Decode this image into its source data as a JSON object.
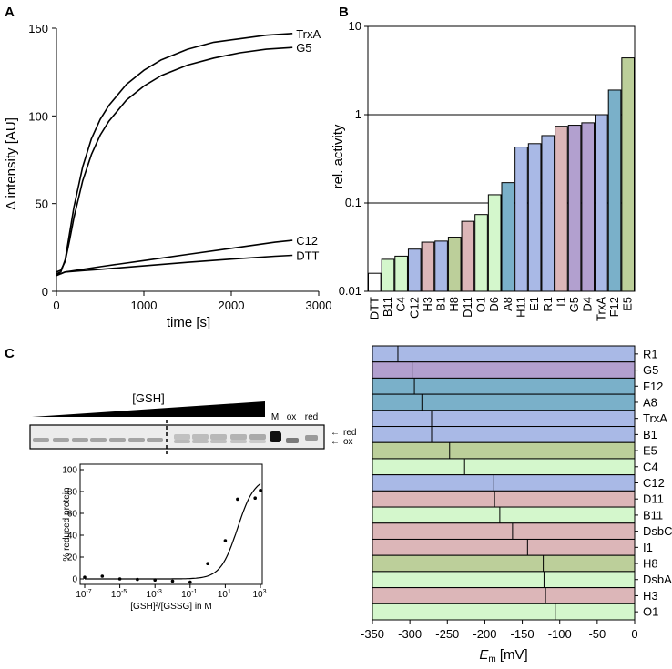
{
  "panels": {
    "a": "A",
    "b": "B",
    "c": "C"
  },
  "chart_data": [
    {
      "id": "A",
      "type": "line",
      "xlabel": "time [s]",
      "ylabel": "Δ intensity [AU]",
      "xlim": [
        0,
        3000
      ],
      "ylim": [
        0,
        150
      ],
      "xticks": [
        0,
        1000,
        2000,
        3000
      ],
      "yticks": [
        0,
        50,
        100,
        150
      ],
      "grid": false,
      "series": [
        {
          "name": "TrxA",
          "x": [
            0,
            50,
            100,
            150,
            200,
            300,
            400,
            500,
            600,
            800,
            1000,
            1200,
            1500,
            1800,
            2100,
            2400,
            2700
          ],
          "values": [
            10,
            11,
            18,
            33,
            48,
            71,
            87,
            98,
            106,
            118,
            126,
            132,
            138,
            142,
            144,
            146,
            147
          ]
        },
        {
          "name": "G5",
          "x": [
            0,
            50,
            100,
            150,
            200,
            300,
            400,
            500,
            600,
            800,
            1000,
            1200,
            1500,
            1800,
            2100,
            2400,
            2700
          ],
          "values": [
            11,
            12,
            17,
            29,
            42,
            63,
            78,
            89,
            97,
            109,
            117,
            123,
            129,
            133,
            136,
            138,
            139
          ]
        },
        {
          "name": "C12",
          "x": [
            0,
            50,
            100,
            300,
            500,
            1000,
            1500,
            2000,
            2500,
            2700
          ],
          "values": [
            10,
            10,
            11,
            12.5,
            14,
            17.5,
            21,
            24.5,
            28,
            29
          ]
        },
        {
          "name": "DTT",
          "x": [
            0,
            50,
            100,
            300,
            500,
            1000,
            1500,
            2000,
            2500,
            2700
          ],
          "values": [
            9,
            10,
            11,
            11.8,
            12.5,
            14.5,
            16.5,
            18.3,
            20,
            20.5
          ]
        }
      ]
    },
    {
      "id": "B",
      "type": "bar",
      "yscale": "log",
      "ylabel": "rel. activity",
      "ylim": [
        0.01,
        10
      ],
      "yticks": [
        "0.01",
        "0.1",
        "1",
        "10"
      ],
      "gridlines": [
        0.1,
        1,
        10
      ],
      "categories": [
        "DTT",
        "B11",
        "C4",
        "C12",
        "H3",
        "B1",
        "H8",
        "D11",
        "O1",
        "D6",
        "A8",
        "H11",
        "E1",
        "R1",
        "I1",
        "G5",
        "D4",
        "TrxA",
        "F12",
        "E5"
      ],
      "values": [
        0.016,
        0.023,
        0.025,
        0.03,
        0.036,
        0.037,
        0.041,
        0.062,
        0.074,
        0.124,
        0.17,
        0.43,
        0.47,
        0.58,
        0.74,
        0.76,
        0.81,
        1.0,
        1.9,
        4.4
      ],
      "colors": [
        "#ffffff",
        "#d4f7cc",
        "#d4f7cc",
        "#a9b9e6",
        "#dcb6b8",
        "#a9b9e6",
        "#bccf9a",
        "#dcb6b8",
        "#d4f7cc",
        "#d4f7cc",
        "#7ab0c9",
        "#a9b9e6",
        "#a9b9e6",
        "#a9b9e6",
        "#dcb6b8",
        "#b2a0cf",
        "#b2a0cf",
        "#a9b9e6",
        "#7ab0c9",
        "#bccf9a"
      ]
    },
    {
      "id": "C-gel",
      "type": "table",
      "gradient_label": "[GSH]",
      "lanes": [
        "M",
        "ox",
        "red"
      ],
      "bands": [
        "red",
        "ox"
      ]
    },
    {
      "id": "C-curve",
      "type": "scatter",
      "xscale": "log",
      "xlabel": "[GSH]²/[GSSG] in M",
      "ylabel": "% reduced protein",
      "xlim": [
        1e-07,
        1000
      ],
      "ylim": [
        -5,
        105
      ],
      "xtick_base": "10",
      "xtick_exponents": [
        "-7",
        "-5",
        "-3",
        "-1",
        "1",
        "3"
      ],
      "yticks": [
        0,
        20,
        40,
        60,
        80,
        100
      ],
      "points": {
        "x": [
          1e-07,
          1e-06,
          1e-05,
          0.0001,
          0.001,
          0.01,
          0.1,
          1,
          10,
          50,
          500,
          1000
        ],
        "y": [
          1.5,
          2.5,
          0,
          -0.5,
          -1,
          -2,
          -3,
          14,
          35,
          73,
          74,
          81
        ]
      },
      "fit": {
        "model": "sigmoid",
        "top": 93,
        "midpoint": 50,
        "slope": 0.9
      }
    },
    {
      "id": "C-bars",
      "type": "bar",
      "orientation": "horizontal",
      "xlabel_main": "E",
      "xlabel_sub": "m",
      "xlabel_unit": " [mV]",
      "xlim": [
        -350,
        0
      ],
      "xticks": [
        -350,
        -300,
        -250,
        -200,
        -150,
        -100,
        -50,
        0
      ],
      "categories": [
        "R1",
        "G5",
        "F12",
        "A8",
        "TrxA",
        "B1",
        "E5",
        "C4",
        "C12",
        "D11",
        "B11",
        "DsbC",
        "I1",
        "H8",
        "DsbA",
        "H3",
        "O1"
      ],
      "values": [
        -316,
        -297,
        -294,
        -284,
        -271,
        -271,
        -247,
        -227,
        -188,
        -187,
        -180,
        -163,
        -143,
        -122,
        -121,
        -119,
        -106
      ],
      "colors": [
        "#a9b9e6",
        "#b2a0cf",
        "#7ab0c9",
        "#7ab0c9",
        "#a9b9e6",
        "#a9b9e6",
        "#bccf9a",
        "#d4f7cc",
        "#a9b9e6",
        "#dcb6b8",
        "#d4f7cc",
        "#dcb6b8",
        "#dcb6b8",
        "#bccf9a",
        "#d4f7cc",
        "#dcb6b8",
        "#d4f7cc"
      ]
    }
  ]
}
